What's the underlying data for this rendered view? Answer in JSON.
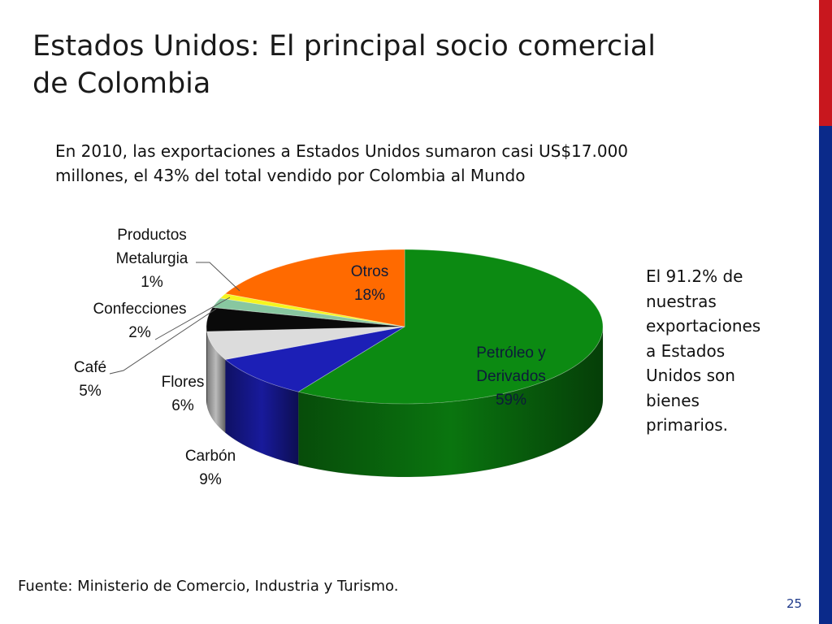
{
  "slide": {
    "title_line1": "Estados Unidos:  El principal socio comercial",
    "title_line2": "de Colombia",
    "intro_line1": "En 2010, las exportaciones a Estados Unidos sumaron casi US$17.000",
    "intro_line2": "millones, el 43% del total vendido por Colombia al Mundo",
    "note_lines": [
      "El 91.2% de",
      "nuestras",
      "exportaciones",
      "a Estados",
      "Unidos son",
      "bienes",
      "primarios."
    ],
    "source": "Fuente: Ministerio de Comercio, Industria y Turismo.",
    "page_number": "25",
    "accent_colors": {
      "top_bar": "#c8171e",
      "side_bar": "#0a2a8a"
    }
  },
  "chart_data": {
    "type": "pie",
    "style": "3d",
    "slices": [
      {
        "label_lines": [
          "Petróleo y",
          "Derivados"
        ],
        "value_label": "59%",
        "value": 59,
        "color": "#0c8a12"
      },
      {
        "label_lines": [
          "Carbón"
        ],
        "value_label": "9%",
        "value": 9,
        "color": "#1c1fb6"
      },
      {
        "label_lines": [
          "Flores"
        ],
        "value_label": "6%",
        "value": 6,
        "color": "#dcdcdc"
      },
      {
        "label_lines": [
          "Café"
        ],
        "value_label": "5%",
        "value": 5,
        "color": "#0a0a0a"
      },
      {
        "label_lines": [
          "Confecciones"
        ],
        "value_label": "2%",
        "value": 2,
        "color": "#88c7a0"
      },
      {
        "label_lines": [
          "Productos",
          "Metalurgia"
        ],
        "value_label": "1%",
        "value": 1,
        "color": "#f5f51e"
      },
      {
        "label_lines": [
          "Otros"
        ],
        "value_label": "18%",
        "value": 18,
        "color": "#ff6a00"
      }
    ]
  }
}
